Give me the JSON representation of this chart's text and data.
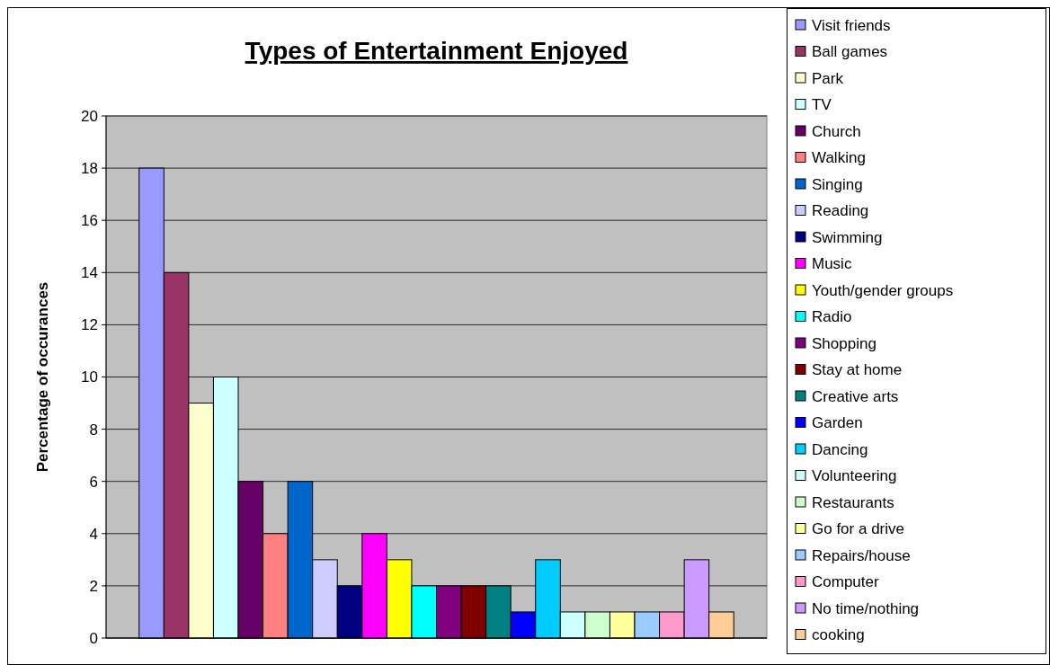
{
  "chart_data": {
    "type": "bar",
    "title": "Types of Entertainment Enjoyed",
    "ylabel": "Percentage of occurances",
    "categories": [
      null
    ],
    "ylim": [
      0,
      20
    ],
    "yticks": [
      0,
      2,
      4,
      6,
      8,
      10,
      12,
      14,
      16,
      18,
      20
    ],
    "grid": "y",
    "legend": "right",
    "series": [
      {
        "name": "Visit friends",
        "color": "#9999ff",
        "values": [
          18
        ]
      },
      {
        "name": "Ball games",
        "color": "#993366",
        "values": [
          14
        ]
      },
      {
        "name": "Park",
        "color": "#ffffcc",
        "values": [
          9
        ]
      },
      {
        "name": "TV",
        "color": "#ccffff",
        "values": [
          10
        ]
      },
      {
        "name": "Church",
        "color": "#660066",
        "values": [
          6
        ]
      },
      {
        "name": "Walking",
        "color": "#ff8080",
        "values": [
          4
        ]
      },
      {
        "name": "Singing",
        "color": "#0066cc",
        "values": [
          6
        ]
      },
      {
        "name": "Reading",
        "color": "#ccccff",
        "values": [
          3
        ]
      },
      {
        "name": "Swimming",
        "color": "#000080",
        "values": [
          2
        ]
      },
      {
        "name": "Music",
        "color": "#ff00ff",
        "values": [
          4
        ]
      },
      {
        "name": "Youth/gender groups",
        "color": "#ffff00",
        "values": [
          3
        ]
      },
      {
        "name": "Radio",
        "color": "#00ffff",
        "values": [
          2
        ]
      },
      {
        "name": "Shopping",
        "color": "#800080",
        "values": [
          2
        ]
      },
      {
        "name": "Stay at home",
        "color": "#800000",
        "values": [
          2
        ]
      },
      {
        "name": "Creative arts",
        "color": "#008080",
        "values": [
          2
        ]
      },
      {
        "name": "Garden",
        "color": "#0000ff",
        "values": [
          1
        ]
      },
      {
        "name": "Dancing",
        "color": "#00ccff",
        "values": [
          3
        ]
      },
      {
        "name": "Volunteering",
        "color": "#ccffff",
        "values": [
          1
        ]
      },
      {
        "name": "Restaurants",
        "color": "#ccffcc",
        "values": [
          1
        ]
      },
      {
        "name": "Go for a drive",
        "color": "#ffff99",
        "values": [
          1
        ]
      },
      {
        "name": "Repairs/house",
        "color": "#99ccff",
        "values": [
          1
        ]
      },
      {
        "name": "Computer",
        "color": "#ff99cc",
        "values": [
          1
        ]
      },
      {
        "name": "No time/nothing",
        "color": "#cc99ff",
        "values": [
          3
        ]
      },
      {
        "name": "cooking",
        "color": "#ffcc99",
        "values": [
          1
        ]
      }
    ]
  }
}
